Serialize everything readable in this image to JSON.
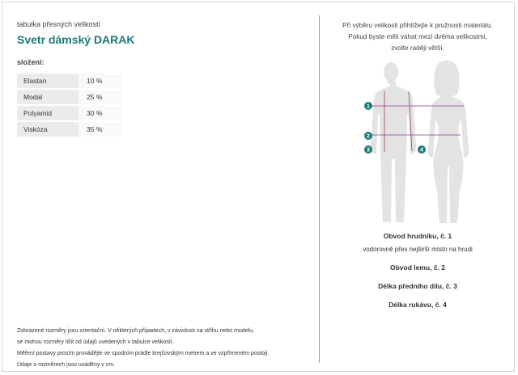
{
  "header": {
    "kicker": "tabulka přesných velikostí",
    "title": "Svetr dámský DARAK"
  },
  "composition": {
    "label": "složení:",
    "rows": [
      {
        "name": "Elastan",
        "value": "10 %"
      },
      {
        "name": "Modal",
        "value": "25 %"
      },
      {
        "name": "Polyamid",
        "value": "30 %"
      },
      {
        "name": "Viskóza",
        "value": "35 %"
      }
    ]
  },
  "footnote": {
    "lines": [
      "Zobrazené rozměry jsou orientační. V některých případech, v závislosti na střihu nebo modelu,",
      "se mohou rozměry lišit od údajů uvedených v tabulce velikostí.",
      "Měření postavy prosím provádějte ve spodním prádle krejčovským metrem a ve vzpřímeném postoji.",
      "Údaje o rozměrech jsou uváděny v cm."
    ]
  },
  "advice": {
    "lines": [
      "Při výběru velikosti přihlížejte k pružnosti materiálu.",
      "Pokud byste měli váhat mezi dvěma velikostmi,",
      "zvolte raději větší."
    ]
  },
  "figure": {
    "markers": [
      "1",
      "2",
      "3",
      "4"
    ],
    "accent": "#1d7a7a",
    "line_color": "#8e3a7a"
  },
  "measurements": {
    "chest": {
      "title": "Obvod hrudníku, č. 1",
      "desc": "vodorovně přes nejširší místo na hrudi"
    },
    "hem": {
      "title": "Obvod lemu, č. 2"
    },
    "front_length": {
      "title": "Délka předního dílu, č. 3"
    },
    "sleeve_length": {
      "title": "Délka rukávu, č. 4"
    }
  }
}
